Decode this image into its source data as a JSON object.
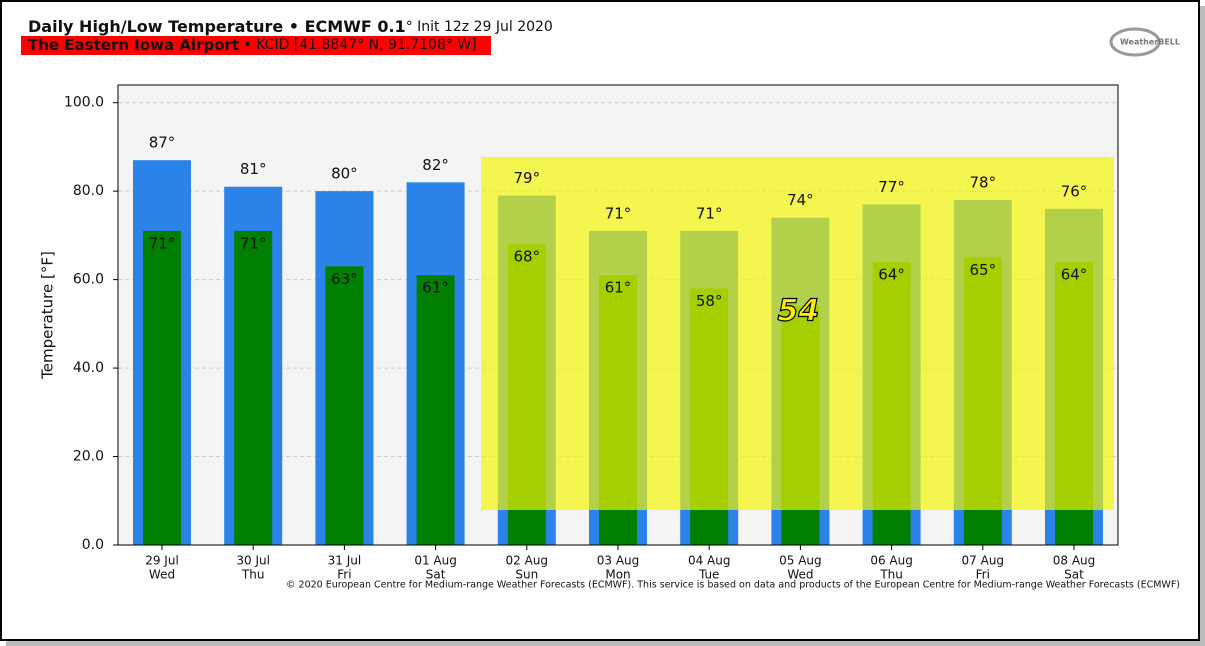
{
  "chart_data": {
    "type": "bar",
    "title": "Daily High/Low Temperature • ECMWF 0.1",
    "title_suffix": "° Init 12z 29 Jul 2020",
    "subtitle_location": "The Eastern Iowa Airport",
    "subtitle_station": " • KCID [41.8847° N, 91.7108° W]",
    "logo": "WeatherBELL",
    "ylabel": "Temperature [°F]",
    "copyright": "© 2020 European Centre for Medium-range Weather Forecasts (ECMWF). This service is based on data and products of the European Centre for Medium-range Weather Forecasts (ECMWF)",
    "categories": [
      "29 Jul",
      "30 Jul",
      "31 Jul",
      "01 Aug",
      "02 Aug",
      "03 Aug",
      "04 Aug",
      "05 Aug",
      "06 Aug",
      "07 Aug",
      "08 Aug"
    ],
    "weekdays": [
      "Wed",
      "Thu",
      "Fri",
      "Sat",
      "Sun",
      "Mon",
      "Tue",
      "Wed",
      "Thu",
      "Fri",
      "Sat"
    ],
    "series": [
      {
        "name": "High",
        "color": "#2b83ea",
        "values": [
          87,
          81,
          80,
          82,
          79,
          71,
          71,
          74,
          77,
          78,
          76
        ],
        "value_labels": [
          "87°",
          "81°",
          "80°",
          "82°",
          "79°",
          "71°",
          "71°",
          "74°",
          "77°",
          "78°",
          "76°"
        ]
      },
      {
        "name": "Low",
        "color": "#007f00",
        "values": [
          71,
          71,
          63,
          61,
          68,
          61,
          58,
          54,
          64,
          65,
          64
        ],
        "value_labels": [
          "71°",
          "71°",
          "63°",
          "61°",
          "68°",
          "61°",
          "58°",
          "54",
          "64°",
          "65°",
          "64°"
        ]
      }
    ],
    "ylim": [
      0,
      104
    ],
    "yticks": [
      {
        "value": 0,
        "label": "0.0"
      },
      {
        "value": 20,
        "label": "20.0"
      },
      {
        "value": 40,
        "label": "40.0"
      },
      {
        "value": 60,
        "label": "60.0"
      },
      {
        "value": 80,
        "label": "80.0"
      },
      {
        "value": 100,
        "label": "100.0"
      }
    ],
    "grid": true
  }
}
